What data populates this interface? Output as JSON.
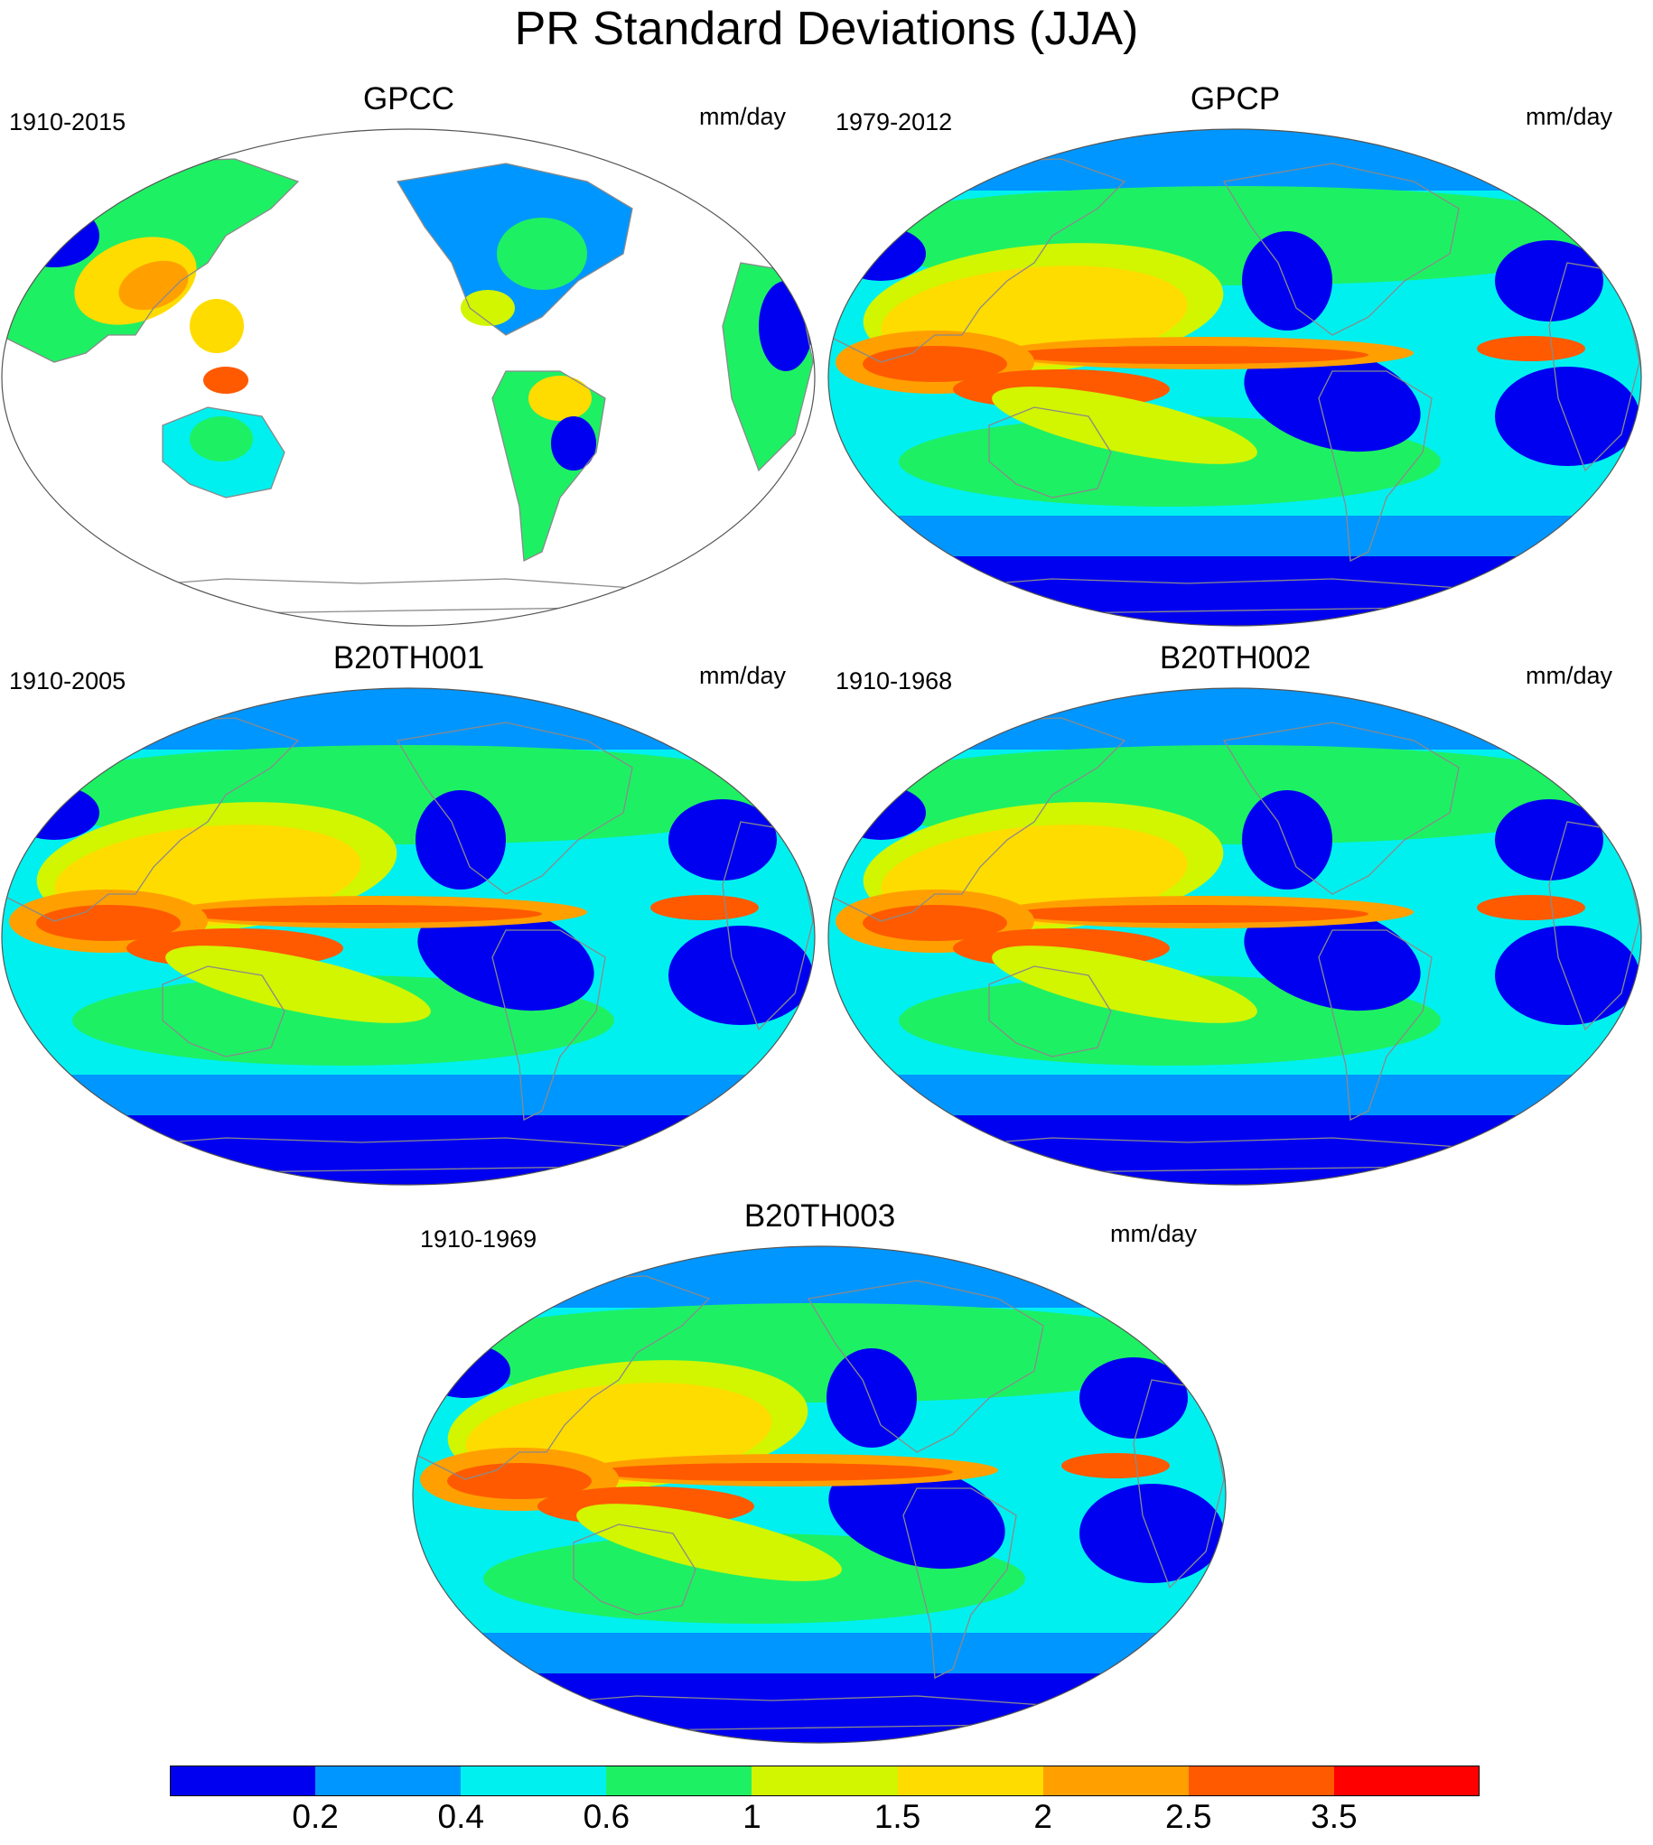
{
  "figure": {
    "title": "PR Standard Deviations (JJA)"
  },
  "panels": [
    {
      "title": "GPCC",
      "period": "1910-2015",
      "units": "mm/day",
      "coverage": "land-only"
    },
    {
      "title": "GPCP",
      "period": "1979-2012",
      "units": "mm/day",
      "coverage": "global"
    },
    {
      "title": "B20TH001",
      "period": "1910-2005",
      "units": "mm/day",
      "coverage": "global"
    },
    {
      "title": "B20TH002",
      "period": "1910-1968",
      "units": "mm/day",
      "coverage": "global"
    },
    {
      "title": "B20TH003",
      "period": "1910-1969",
      "units": "mm/day",
      "coverage": "global"
    }
  ],
  "colorbar": {
    "labels": [
      "0.2",
      "0.4",
      "0.6",
      "1",
      "1.5",
      "2",
      "2.5",
      "3.5"
    ],
    "colors": [
      "#0000f0",
      "#0096ff",
      "#00f0f0",
      "#1ef064",
      "#d2f500",
      "#ffdc00",
      "#ffa000",
      "#ff5a00",
      "#ff0000"
    ]
  },
  "map": {
    "projection": "Robinson-like, Pacific-centered (180°)",
    "background_color": "#0000f0",
    "coastline_color": "#8a8a8a"
  }
}
